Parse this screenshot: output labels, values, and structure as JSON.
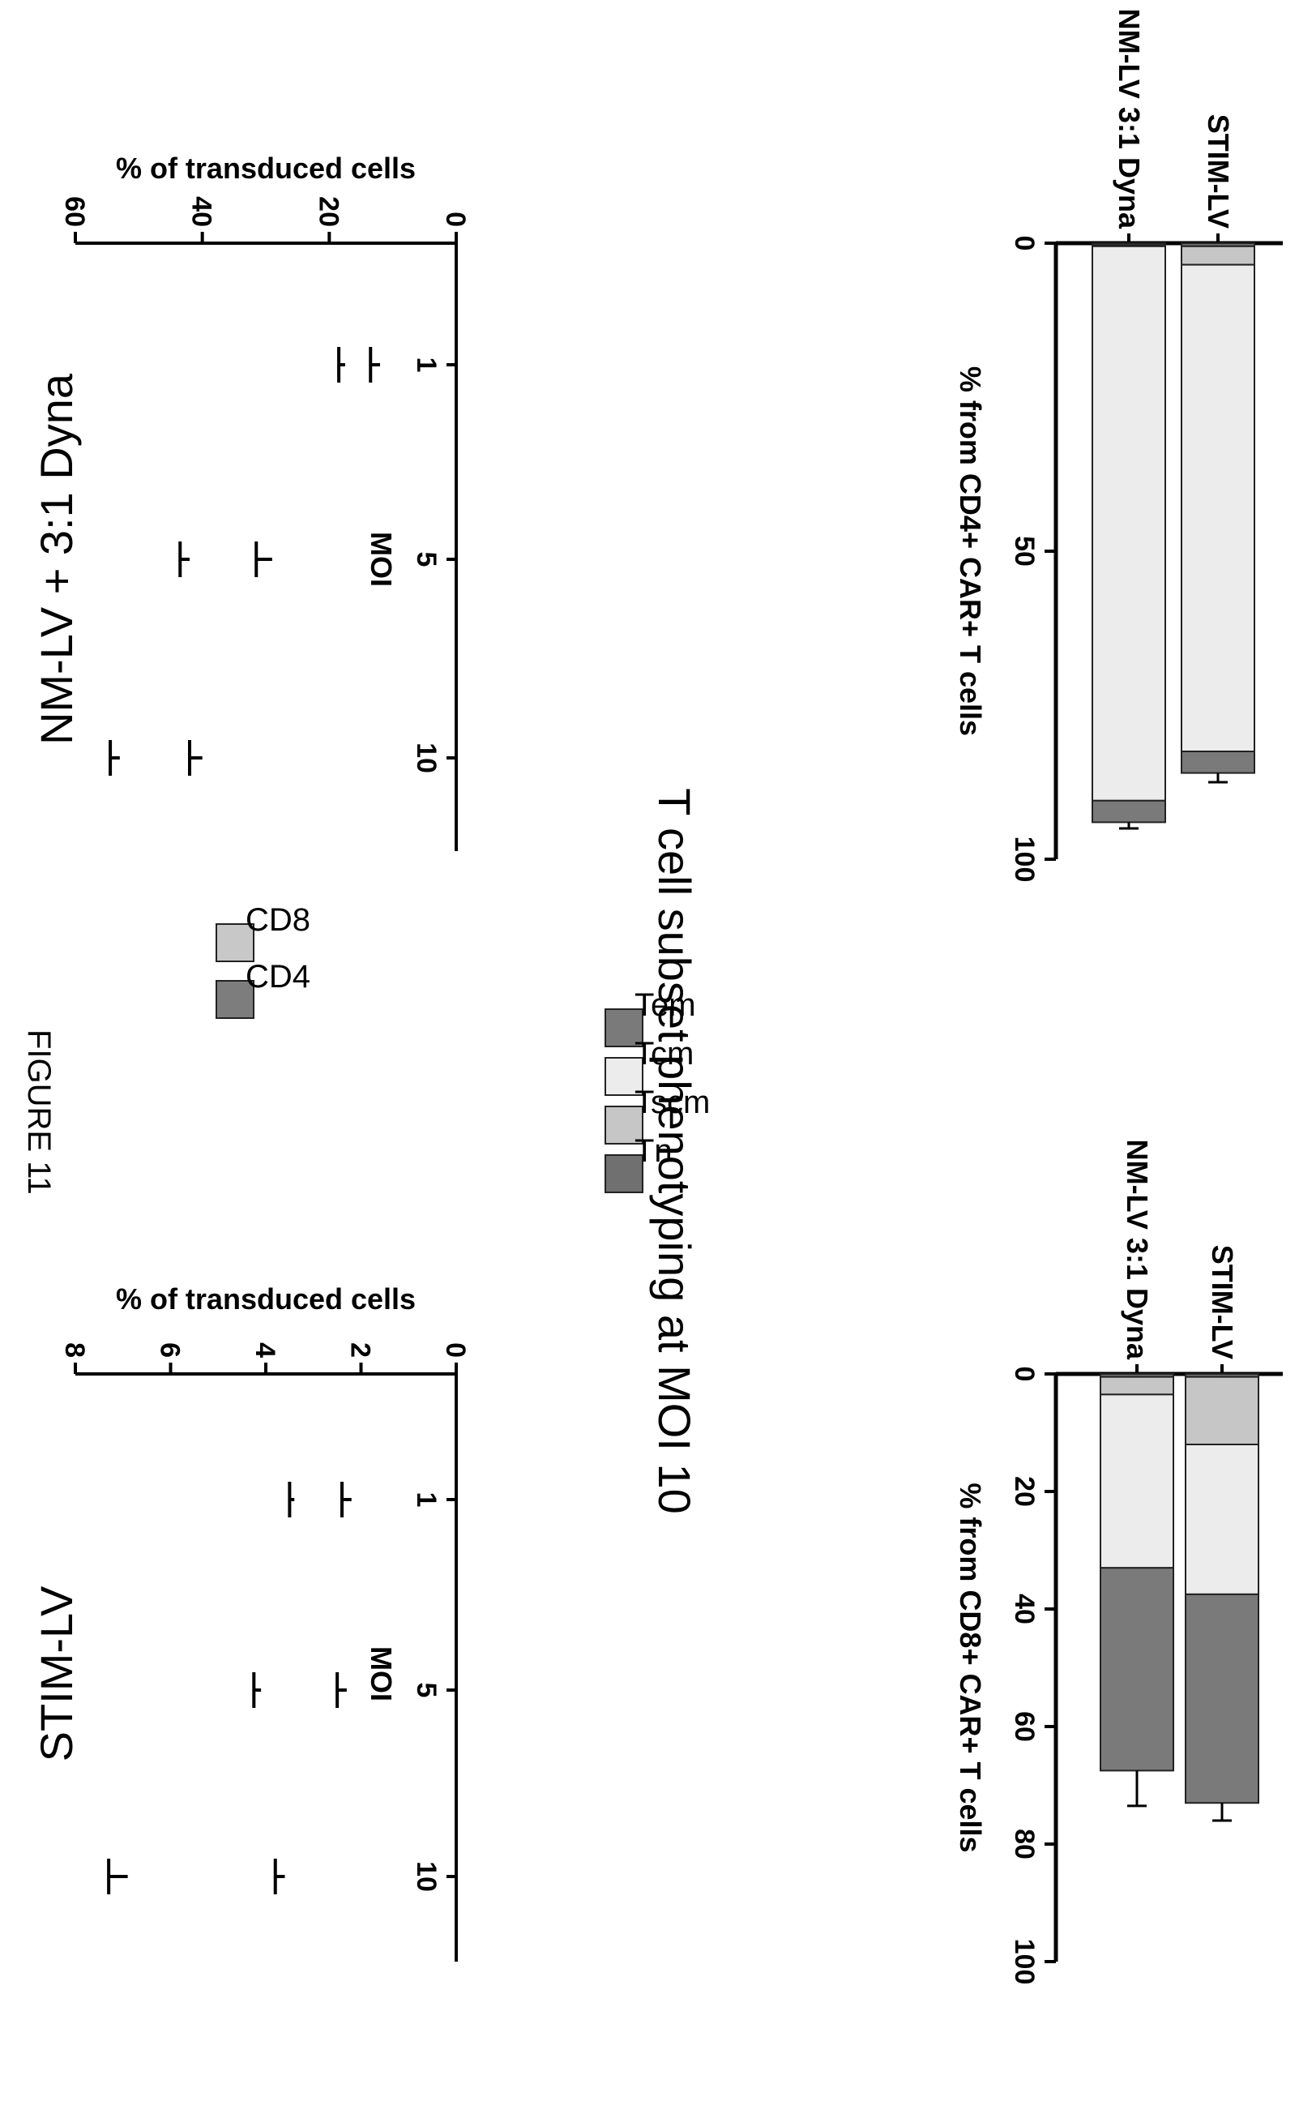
{
  "figure_label": "FIGURE 11",
  "center_title": "T cell subset phenotyping at MOI 10",
  "colors": {
    "CD8": "#c8c8c8",
    "CD4": "#7d7d7d",
    "Tem": "#7a7a7a",
    "Tcm": "#ececec",
    "Tscm": "#c6c6c6",
    "Tn": "#707070"
  },
  "chart_data": [
    {
      "type": "bar",
      "stacked": true,
      "title": "NM-LV + 3:1 Dyna",
      "xlabel": "MOI",
      "ylabel": "% of transduced cells",
      "categories": [
        "1",
        "5",
        "10"
      ],
      "ylim": [
        0,
        60
      ],
      "yticks": [
        "0",
        "20",
        "40",
        "60"
      ],
      "series": [
        {
          "name": "CD4",
          "values": [
            12,
            29,
            40
          ],
          "errors": [
            1.5,
            2.5,
            2
          ]
        },
        {
          "name": "CD8",
          "values": [
            5.5,
            13,
            13
          ],
          "errors": [
            1,
            1.5,
            1.5
          ]
        }
      ],
      "highlight_category": "10"
    },
    {
      "type": "bar",
      "stacked": true,
      "title": "STIM-LV",
      "xlabel": "MOI",
      "ylabel": "% of transduced cells",
      "categories": [
        "1",
        "5",
        "10"
      ],
      "ylim": [
        0,
        8
      ],
      "yticks": [
        "0",
        "2",
        "4",
        "6",
        "8"
      ],
      "series": [
        {
          "name": "CD4",
          "values": [
            2.2,
            2.3,
            3.6
          ],
          "errors": [
            0.2,
            0.2,
            0.2
          ]
        },
        {
          "name": "CD8",
          "values": [
            1.2,
            1.8,
            3.3
          ],
          "errors": [
            0.1,
            0.15,
            0.4
          ]
        }
      ],
      "highlight_category": "10"
    },
    {
      "type": "bar",
      "orientation": "horizontal",
      "stacked": true,
      "xlabel": "% from CD4+ CAR+ T cells",
      "categories": [
        "NM-LV 3:1 Dyna",
        "STIM-LV"
      ],
      "xlim": [
        0,
        100
      ],
      "xticks": [
        "0",
        "50",
        "100"
      ],
      "series": [
        {
          "name": "Tn",
          "values": [
            0.3,
            0.5
          ],
          "errors": [
            0.1,
            0.1
          ]
        },
        {
          "name": "Tscm",
          "values": [
            0.2,
            3.0
          ],
          "errors": [
            0.1,
            0.3
          ]
        },
        {
          "name": "Tcm",
          "values": [
            90.0,
            79.0
          ],
          "errors": [
            0.3,
            0.5
          ]
        },
        {
          "name": "Tem",
          "values": [
            3.5,
            3.5
          ],
          "errors": [
            1.0,
            1.5
          ]
        }
      ]
    },
    {
      "type": "bar",
      "orientation": "horizontal",
      "stacked": true,
      "xlabel": "% from CD8+ CAR+ T cells",
      "categories": [
        "NM-LV 3:1 Dyna",
        "STIM-LV"
      ],
      "xlim": [
        0,
        100
      ],
      "xticks": [
        "0",
        "20",
        "40",
        "60",
        "80",
        "100"
      ],
      "series": [
        {
          "name": "Tn",
          "values": [
            0.5,
            0.5
          ],
          "errors": [
            0.1,
            0.1
          ]
        },
        {
          "name": "Tscm",
          "values": [
            3.0,
            11.5
          ],
          "errors": [
            0.5,
            3
          ]
        },
        {
          "name": "Tcm",
          "values": [
            29.5,
            25.5
          ],
          "errors": [
            1.5,
            0.3
          ]
        },
        {
          "name": "Tem",
          "values": [
            34.5,
            35.5
          ],
          "errors": [
            6,
            3
          ]
        }
      ]
    }
  ],
  "legend_top": [
    "CD8",
    "CD4"
  ],
  "legend_bottom": [
    "Tem",
    "Tcm",
    "Tscm",
    "Tn"
  ]
}
